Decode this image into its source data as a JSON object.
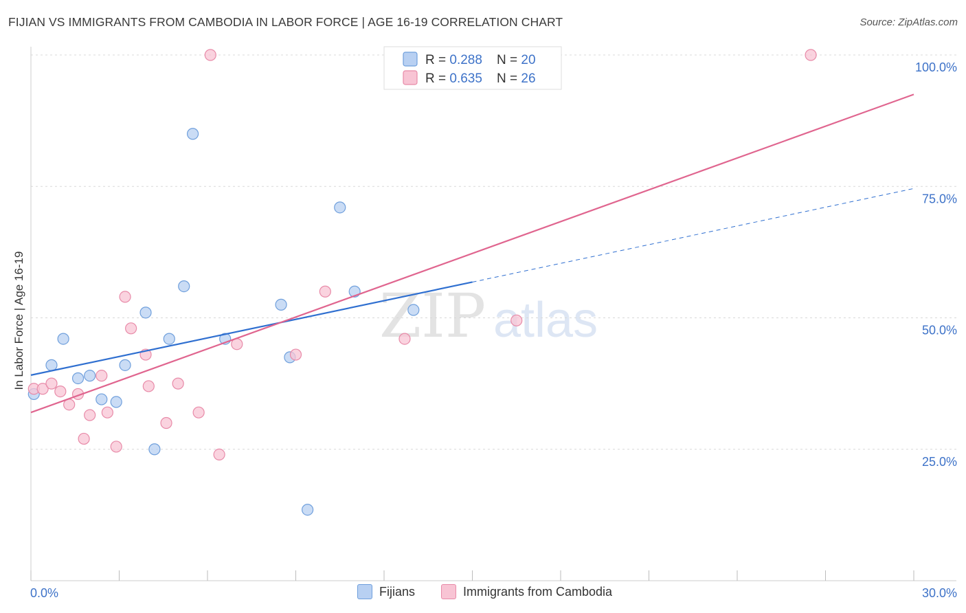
{
  "title": "FIJIAN VS IMMIGRANTS FROM CAMBODIA IN LABOR FORCE | AGE 16-19 CORRELATION CHART",
  "source": "Source: ZipAtlas.com",
  "watermark": {
    "zip": "ZIP",
    "atlas": "atlas"
  },
  "colors": {
    "fijians_fill": "#b8d0f2",
    "fijians_stroke": "#6f9fdc",
    "fijians_line": "#2f6fd0",
    "cambodia_fill": "#f8c4d4",
    "cambodia_stroke": "#e88aa8",
    "cambodia_line": "#e0658f",
    "tick_label": "#3d72c8",
    "grid": "#d8d8d8"
  },
  "chart_data": {
    "type": "scatter",
    "title": "FIJIAN VS IMMIGRANTS FROM CAMBODIA IN LABOR FORCE | AGE 16-19 CORRELATION CHART",
    "xlabel": "",
    "ylabel": "In Labor Force | Age 16-19",
    "xlim": [
      0,
      30
    ],
    "ylim": [
      0,
      100
    ],
    "x_tick_labels": [
      "0.0%",
      "30.0%"
    ],
    "y_ticks": [
      25,
      50,
      75,
      100
    ],
    "y_tick_labels": [
      "25.0%",
      "50.0%",
      "75.0%",
      "100.0%"
    ],
    "series": [
      {
        "name": "Fijians",
        "legend": {
          "r_label": "R = ",
          "r_value": "0.288",
          "n_label": "N = ",
          "n_value": "20"
        },
        "points": [
          {
            "x": 0.1,
            "y": 35.5
          },
          {
            "x": 0.7,
            "y": 41.0
          },
          {
            "x": 1.1,
            "y": 46.0
          },
          {
            "x": 1.6,
            "y": 38.5
          },
          {
            "x": 2.0,
            "y": 39.0
          },
          {
            "x": 2.4,
            "y": 34.5
          },
          {
            "x": 2.9,
            "y": 34.0
          },
          {
            "x": 3.2,
            "y": 41.0
          },
          {
            "x": 3.9,
            "y": 51.0
          },
          {
            "x": 4.2,
            "y": 25.0
          },
          {
            "x": 4.7,
            "y": 46.0
          },
          {
            "x": 5.2,
            "y": 56.0
          },
          {
            "x": 5.5,
            "y": 85.0
          },
          {
            "x": 6.6,
            "y": 46.0
          },
          {
            "x": 8.5,
            "y": 52.5
          },
          {
            "x": 8.8,
            "y": 42.5
          },
          {
            "x": 9.4,
            "y": 13.5
          },
          {
            "x": 10.5,
            "y": 71.0
          },
          {
            "x": 11.0,
            "y": 55.0
          },
          {
            "x": 13.0,
            "y": 51.5
          }
        ],
        "trend": {
          "x0": 0,
          "y0": 39.1,
          "x1": 15.0,
          "y1": 56.8,
          "dash_to_x": 30,
          "dash_to_y": 74.6
        }
      },
      {
        "name": "Immigrants from Cambodia",
        "legend": {
          "r_label": "R = ",
          "r_value": "0.635",
          "n_label": "N = ",
          "n_value": "26"
        },
        "points": [
          {
            "x": 0.1,
            "y": 36.5
          },
          {
            "x": 0.4,
            "y": 36.5
          },
          {
            "x": 0.7,
            "y": 37.5
          },
          {
            "x": 1.0,
            "y": 36.0
          },
          {
            "x": 1.3,
            "y": 33.5
          },
          {
            "x": 1.6,
            "y": 35.5
          },
          {
            "x": 1.8,
            "y": 27.0
          },
          {
            "x": 2.0,
            "y": 31.5
          },
          {
            "x": 2.4,
            "y": 39.0
          },
          {
            "x": 2.6,
            "y": 32.0
          },
          {
            "x": 2.9,
            "y": 25.5
          },
          {
            "x": 3.2,
            "y": 54.0
          },
          {
            "x": 3.4,
            "y": 48.0
          },
          {
            "x": 3.9,
            "y": 43.0
          },
          {
            "x": 4.0,
            "y": 37.0
          },
          {
            "x": 4.6,
            "y": 30.0
          },
          {
            "x": 5.0,
            "y": 37.5
          },
          {
            "x": 5.7,
            "y": 32.0
          },
          {
            "x": 6.1,
            "y": 100.0
          },
          {
            "x": 6.4,
            "y": 24.0
          },
          {
            "x": 7.0,
            "y": 45.0
          },
          {
            "x": 9.0,
            "y": 43.0
          },
          {
            "x": 10.0,
            "y": 55.0
          },
          {
            "x": 12.7,
            "y": 46.0
          },
          {
            "x": 16.5,
            "y": 49.5
          },
          {
            "x": 26.5,
            "y": 100.0
          }
        ],
        "trend": {
          "x0": 0,
          "y0": 32.0,
          "x1": 30.0,
          "y1": 92.5
        }
      }
    ]
  }
}
